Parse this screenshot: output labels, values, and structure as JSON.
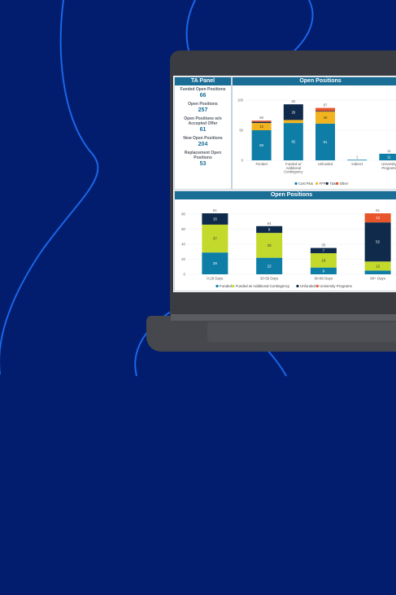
{
  "ta_panel": {
    "title": "TA Panel",
    "items": [
      {
        "label": "Funded Open Positions",
        "value": "66"
      },
      {
        "label": "Open Positions",
        "value": "257"
      },
      {
        "label": "Open Positions w/o Accepted Offer",
        "value": "61"
      },
      {
        "label": "New Open Positions",
        "value": "204"
      },
      {
        "label": "Replacement Open Positions",
        "value": "53"
      }
    ]
  },
  "colors": {
    "background": "#021d6e",
    "header": "#1a6e96",
    "cost_plus": "#0f7ea6",
    "ffp": "#f2b41e",
    "tm": "#0f2a4a",
    "other": "#e8552b",
    "funded": "#0f7ea6",
    "funded_contingency": "#c3d92b",
    "unfunded": "#0f2a4a",
    "university": "#e8552b"
  },
  "chart_data": [
    {
      "type": "bar",
      "title": "Open Positions",
      "stacked": true,
      "categories": [
        "Funded",
        "Funded w/ Additional Contingency",
        "Unfunded",
        "Indirect",
        "University Programs"
      ],
      "yticks": [
        0,
        50,
        100
      ],
      "ylim": [
        0,
        100
      ],
      "totals": [
        "66",
        "93",
        "87",
        "1",
        "11"
      ],
      "series": [
        {
          "name": "Cost Plus",
          "values": [
            50,
            62,
            61,
            1,
            11
          ]
        },
        {
          "name": "FFP",
          "values": [
            12,
            5,
            20,
            0,
            0
          ]
        },
        {
          "name": "T&M",
          "values": [
            2,
            26,
            1,
            0,
            0
          ]
        },
        {
          "name": "Other",
          "values": [
            2,
            0,
            5,
            0,
            0
          ]
        }
      ],
      "segment_labels": [
        [
          "50",
          "12",
          "",
          ""
        ],
        [
          "62",
          "",
          "26",
          ""
        ],
        [
          "61",
          "20",
          "",
          ""
        ],
        [
          "",
          "",
          "",
          ""
        ],
        [
          "11",
          "",
          "",
          ""
        ]
      ],
      "legend": [
        "Cost Plus",
        "FFP",
        "T&M",
        "Other"
      ]
    },
    {
      "type": "bar",
      "title": "Open Positions",
      "stacked": true,
      "categories": [
        "0-29 Days",
        "30-59 Days",
        "60-89 Days",
        "90+ Days"
      ],
      "yticks": [
        0,
        20,
        40,
        60,
        80
      ],
      "ylim": [
        0,
        80
      ],
      "totals": [
        "81",
        "64",
        "35",
        "81"
      ],
      "series": [
        {
          "name": "Funded",
          "values": [
            29,
            22,
            9,
            5
          ]
        },
        {
          "name": "Funded w/ Additional Contingency",
          "values": [
            37,
            33,
            19,
            12
          ]
        },
        {
          "name": "Unfunded",
          "values": [
            15,
            9,
            7,
            52
          ]
        },
        {
          "name": "University Programs",
          "values": [
            0,
            0,
            0,
            12
          ]
        }
      ],
      "segment_labels": [
        [
          "29",
          "37",
          "15",
          ""
        ],
        [
          "22",
          "33",
          "9",
          ""
        ],
        [
          "9",
          "19",
          "7",
          ""
        ],
        [
          "",
          "12",
          "52",
          "12"
        ]
      ],
      "legend": [
        "Funded",
        "Funded w/ Additional Contingency",
        "Unfunded",
        "University Programs"
      ]
    }
  ]
}
